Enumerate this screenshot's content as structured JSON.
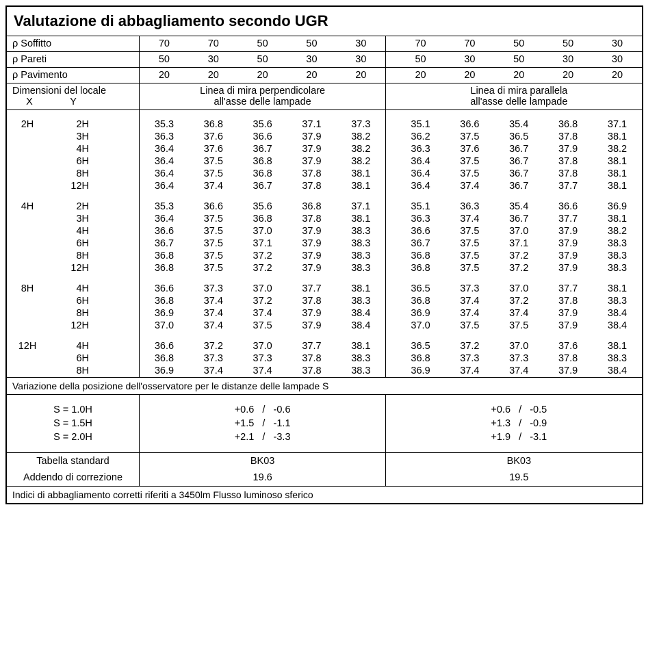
{
  "title": "Valutazione di abbagliamento secondo UGR",
  "reflectances": {
    "soffitto_label": "ρ Soffitto",
    "pareti_label": "ρ Pareti",
    "pavimento_label": "ρ Pavimento",
    "soffitto": [
      "70",
      "70",
      "50",
      "50",
      "30",
      "70",
      "70",
      "50",
      "50",
      "30"
    ],
    "pareti": [
      "50",
      "30",
      "50",
      "30",
      "30",
      "50",
      "30",
      "50",
      "30",
      "30"
    ],
    "pavimento": [
      "20",
      "20",
      "20",
      "20",
      "20",
      "20",
      "20",
      "20",
      "20",
      "20"
    ]
  },
  "dimensions_header": {
    "line1": "Dimensioni del locale",
    "line2_x": "X",
    "line2_y": "Y"
  },
  "orientation": {
    "perp_line1": "Linea di mira perpendicolare",
    "perp_line2": "all'asse delle lampade",
    "par_line1": "Linea di mira parallela",
    "par_line2": "all'asse delle lampade"
  },
  "groups": [
    {
      "x": "2H",
      "rows": [
        {
          "y": "2H",
          "v": [
            "35.3",
            "36.8",
            "35.6",
            "37.1",
            "37.3",
            "35.1",
            "36.6",
            "35.4",
            "36.8",
            "37.1"
          ]
        },
        {
          "y": "3H",
          "v": [
            "36.3",
            "37.6",
            "36.6",
            "37.9",
            "38.2",
            "36.2",
            "37.5",
            "36.5",
            "37.8",
            "38.1"
          ]
        },
        {
          "y": "4H",
          "v": [
            "36.4",
            "37.6",
            "36.7",
            "37.9",
            "38.2",
            "36.3",
            "37.6",
            "36.7",
            "37.9",
            "38.2"
          ]
        },
        {
          "y": "6H",
          "v": [
            "36.4",
            "37.5",
            "36.8",
            "37.9",
            "38.2",
            "36.4",
            "37.5",
            "36.7",
            "37.8",
            "38.1"
          ]
        },
        {
          "y": "8H",
          "v": [
            "36.4",
            "37.5",
            "36.8",
            "37.8",
            "38.1",
            "36.4",
            "37.5",
            "36.7",
            "37.8",
            "38.1"
          ]
        },
        {
          "y": "12H",
          "v": [
            "36.4",
            "37.4",
            "36.7",
            "37.8",
            "38.1",
            "36.4",
            "37.4",
            "36.7",
            "37.7",
            "38.1"
          ]
        }
      ]
    },
    {
      "x": "4H",
      "rows": [
        {
          "y": "2H",
          "v": [
            "35.3",
            "36.6",
            "35.6",
            "36.8",
            "37.1",
            "35.1",
            "36.3",
            "35.4",
            "36.6",
            "36.9"
          ]
        },
        {
          "y": "3H",
          "v": [
            "36.4",
            "37.5",
            "36.8",
            "37.8",
            "38.1",
            "36.3",
            "37.4",
            "36.7",
            "37.7",
            "38.1"
          ]
        },
        {
          "y": "4H",
          "v": [
            "36.6",
            "37.5",
            "37.0",
            "37.9",
            "38.3",
            "36.6",
            "37.5",
            "37.0",
            "37.9",
            "38.2"
          ]
        },
        {
          "y": "6H",
          "v": [
            "36.7",
            "37.5",
            "37.1",
            "37.9",
            "38.3",
            "36.7",
            "37.5",
            "37.1",
            "37.9",
            "38.3"
          ]
        },
        {
          "y": "8H",
          "v": [
            "36.8",
            "37.5",
            "37.2",
            "37.9",
            "38.3",
            "36.8",
            "37.5",
            "37.2",
            "37.9",
            "38.3"
          ]
        },
        {
          "y": "12H",
          "v": [
            "36.8",
            "37.5",
            "37.2",
            "37.9",
            "38.3",
            "36.8",
            "37.5",
            "37.2",
            "37.9",
            "38.3"
          ]
        }
      ]
    },
    {
      "x": "8H",
      "rows": [
        {
          "y": "4H",
          "v": [
            "36.6",
            "37.3",
            "37.0",
            "37.7",
            "38.1",
            "36.5",
            "37.3",
            "37.0",
            "37.7",
            "38.1"
          ]
        },
        {
          "y": "6H",
          "v": [
            "36.8",
            "37.4",
            "37.2",
            "37.8",
            "38.3",
            "36.8",
            "37.4",
            "37.2",
            "37.8",
            "38.3"
          ]
        },
        {
          "y": "8H",
          "v": [
            "36.9",
            "37.4",
            "37.4",
            "37.9",
            "38.4",
            "36.9",
            "37.4",
            "37.4",
            "37.9",
            "38.4"
          ]
        },
        {
          "y": "12H",
          "v": [
            "37.0",
            "37.4",
            "37.5",
            "37.9",
            "38.4",
            "37.0",
            "37.5",
            "37.5",
            "37.9",
            "38.4"
          ]
        }
      ]
    },
    {
      "x": "12H",
      "rows": [
        {
          "y": "4H",
          "v": [
            "36.6",
            "37.2",
            "37.0",
            "37.7",
            "38.1",
            "36.5",
            "37.2",
            "37.0",
            "37.6",
            "38.1"
          ]
        },
        {
          "y": "6H",
          "v": [
            "36.8",
            "37.3",
            "37.3",
            "37.8",
            "38.3",
            "36.8",
            "37.3",
            "37.3",
            "37.8",
            "38.3"
          ]
        },
        {
          "y": "8H",
          "v": [
            "36.9",
            "37.4",
            "37.4",
            "37.8",
            "38.3",
            "36.9",
            "37.4",
            "37.4",
            "37.9",
            "38.4"
          ]
        }
      ]
    }
  ],
  "variation_note": "Variazione della posizione dell'osservatore per le distanze delle lampade S",
  "s_rows": [
    {
      "label": "S = 1.0H",
      "perp": "+0.6   /   -0.6",
      "par": "+0.6   /   -0.5"
    },
    {
      "label": "S = 1.5H",
      "perp": "+1.5   /   -1.1",
      "par": "+1.3   /   -0.9"
    },
    {
      "label": "S = 2.0H",
      "perp": "+2.1   /   -3.3",
      "par": "+1.9   /   -3.1"
    }
  ],
  "standard": {
    "table_label": "Tabella standard",
    "table_perp": "BK03",
    "table_par": "BK03",
    "corr_label": "Addendo di correzione",
    "corr_perp": "19.6",
    "corr_par": "19.5"
  },
  "footer": "Indici di abbagliamento corretti riferiti a 3450lm Flusso luminoso sferico"
}
